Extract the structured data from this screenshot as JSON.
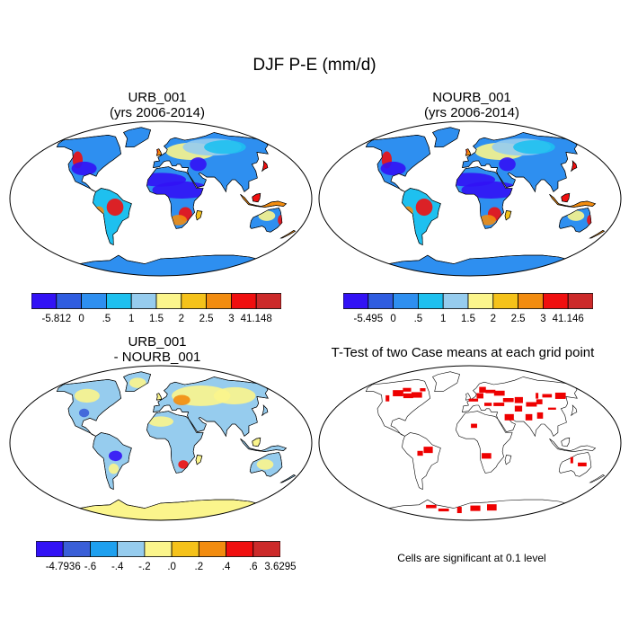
{
  "title": "DJF P-E (mm/d)",
  "panels": {
    "urb": {
      "title_line1": "URB_001",
      "title_line2": "(yrs 2006-2014)",
      "colorbar": {
        "colors": [
          "#3212f5",
          "#2f5ce0",
          "#2e8ff0",
          "#1ec0ef",
          "#96ccee",
          "#fbf58c",
          "#f5c21a",
          "#f28c0f",
          "#f00f0f",
          "#cc2a2a"
        ],
        "labels": [
          "-5.812",
          "0",
          ".5",
          "1",
          "1.5",
          "2",
          "2.5",
          "3",
          "41.148"
        ]
      }
    },
    "nourb": {
      "title_line1": "NOURB_001",
      "title_line2": "(yrs 2006-2014)",
      "colorbar": {
        "colors": [
          "#3212f5",
          "#2f5ce0",
          "#2e8ff0",
          "#1ec0ef",
          "#96ccee",
          "#fbf58c",
          "#f5c21a",
          "#f28c0f",
          "#f00f0f",
          "#cc2a2a"
        ],
        "labels": [
          "-5.495",
          "0",
          ".5",
          "1",
          "1.5",
          "2",
          "2.5",
          "3",
          "41.146"
        ]
      }
    },
    "diff": {
      "title_line1": "URB_001",
      "title_line2": "- NOURB_001",
      "colorbar": {
        "colors": [
          "#3212f5",
          "#3a5fd8",
          "#1ea0ef",
          "#96ccee",
          "#fbf58c",
          "#f5c21a",
          "#f28c0f",
          "#f00f0f",
          "#cc2a2a"
        ],
        "labels": [
          "-4.7936",
          "-.6",
          "-.4",
          "-.2",
          ".0",
          ".2",
          ".4",
          ".6",
          "3.6295"
        ]
      }
    },
    "ttest": {
      "title": "T-Test of two Case means at each grid point",
      "note": "Cells are significant at 0.1 level",
      "sig_color": "#ee0000"
    }
  }
}
